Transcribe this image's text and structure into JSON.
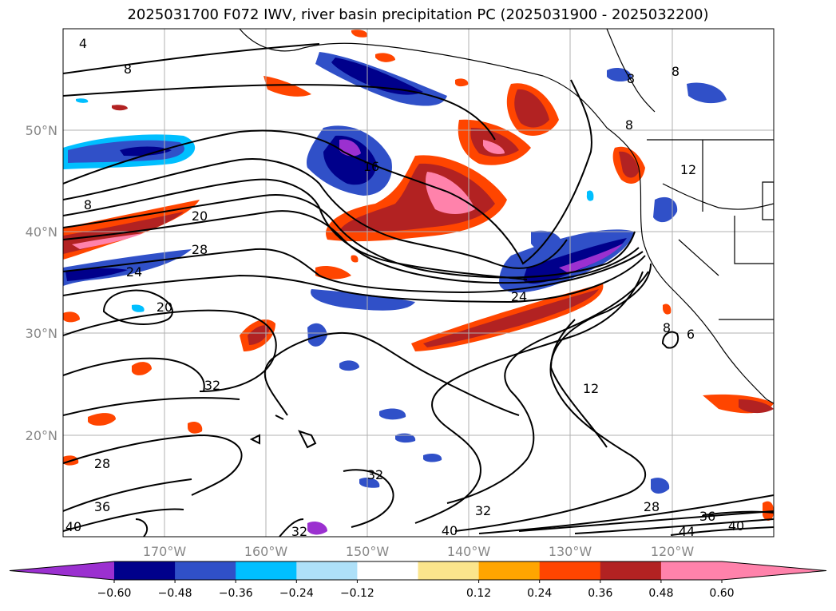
{
  "title": "2025031700 F072 IWV, river basin precipitation PC (2025031900 - 2025032200)",
  "lat_labels": [
    "50°N",
    "40°N",
    "30°N",
    "20°N"
  ],
  "lon_labels": [
    "170°W",
    "160°W",
    "150°W",
    "140°W",
    "130°W",
    "120°W"
  ],
  "contour_labels": [
    "4",
    "8",
    "8",
    "16",
    "20",
    "28",
    "24",
    "20",
    "32",
    "28",
    "36",
    "40",
    "32",
    "32",
    "40",
    "32",
    "28",
    "36",
    "40",
    "44",
    "12",
    "24",
    "8",
    "8",
    "8",
    "8",
    "12",
    "6"
  ],
  "colorbar": {
    "tick_labels": [
      "−0.60",
      "−0.48",
      "−0.36",
      "−0.24",
      "−0.12",
      "0.12",
      "0.24",
      "0.36",
      "0.48",
      "0.60"
    ],
    "colors": [
      "#9b30d0",
      "#00008b",
      "#3050c8",
      "#00bfff",
      "#aee0f8",
      "#ffffff",
      "#fbe58c",
      "#ffa500",
      "#ff4500",
      "#b22222",
      "#ff82ab",
      "#ff82ab"
    ]
  }
}
